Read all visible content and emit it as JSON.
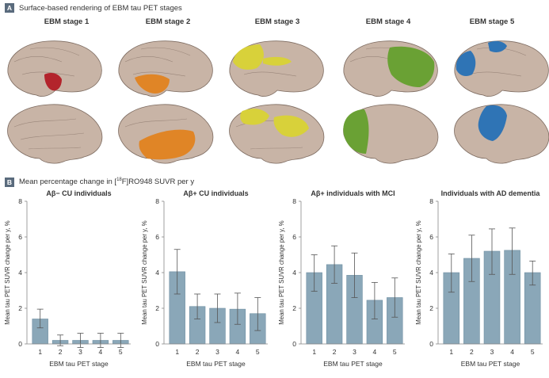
{
  "panel_a": {
    "badge": "A",
    "title": "Surface-based rendering of EBM tau PET stages",
    "stages": [
      {
        "label": "EBM stage 1",
        "color": "#b3242c"
      },
      {
        "label": "EBM stage 2",
        "color": "#e08526"
      },
      {
        "label": "EBM stage 3",
        "color": "#d8d13a"
      },
      {
        "label": "EBM stage 4",
        "color": "#6aa134"
      },
      {
        "label": "EBM stage 5",
        "color": "#2f74b5"
      }
    ]
  },
  "panel_b": {
    "badge": "B",
    "title_pre": "Mean percentage change in [",
    "title_sup": "18",
    "title_post": "F]RO948 SUVR per y"
  },
  "colors": {
    "brain": "#c8b4a6",
    "bar": "#8aa7b8",
    "bar_stroke": "#6f8fa2"
  },
  "chart_data": [
    {
      "type": "bar",
      "title": "Aβ− CU individuals",
      "xlabel": "EBM tau PET stage",
      "ylabel": "Mean tau PET SUVR change per y, %",
      "categories": [
        "1",
        "2",
        "3",
        "4",
        "5"
      ],
      "values": [
        1.4,
        0.2,
        0.2,
        0.2,
        0.2
      ],
      "err_low": [
        0.9,
        -0.1,
        -0.2,
        -0.2,
        -0.2
      ],
      "err_high": [
        1.95,
        0.5,
        0.6,
        0.6,
        0.6
      ],
      "ylim": [
        0,
        8
      ],
      "yticks": [
        "0",
        "2",
        "4",
        "6",
        "8"
      ]
    },
    {
      "type": "bar",
      "title": "Aβ+ CU individuals",
      "xlabel": "EBM tau PET stage",
      "ylabel": "Mean tau PET SUVR change per y, %",
      "categories": [
        "1",
        "2",
        "3",
        "4",
        "5"
      ],
      "values": [
        4.05,
        2.1,
        2.0,
        1.95,
        1.7
      ],
      "err_low": [
        2.8,
        1.4,
        1.2,
        1.1,
        0.75
      ],
      "err_high": [
        5.3,
        2.8,
        2.8,
        2.85,
        2.6
      ],
      "ylim": [
        0,
        8
      ],
      "yticks": [
        "0",
        "2",
        "4",
        "6",
        "8"
      ]
    },
    {
      "type": "bar",
      "title": "Aβ+ individuals with MCI",
      "xlabel": "EBM tau PET stage",
      "ylabel": "Mean tau PET SUVR change per y, %",
      "categories": [
        "1",
        "2",
        "3",
        "4",
        "5"
      ],
      "values": [
        4.0,
        4.45,
        3.85,
        2.45,
        2.6
      ],
      "err_low": [
        2.95,
        3.4,
        2.6,
        1.4,
        1.5
      ],
      "err_high": [
        5.0,
        5.5,
        5.1,
        3.45,
        3.7
      ],
      "ylim": [
        0,
        8
      ],
      "yticks": [
        "0",
        "2",
        "4",
        "6",
        "8"
      ]
    },
    {
      "type": "bar",
      "title": "Individuals with AD dementia",
      "xlabel": "EBM tau PET stage",
      "ylabel": "Mean tau PET SUVR change per y, %",
      "categories": [
        "1",
        "2",
        "3",
        "4",
        "5"
      ],
      "values": [
        4.0,
        4.8,
        5.2,
        5.25,
        4.0
      ],
      "err_low": [
        2.9,
        3.5,
        3.9,
        3.9,
        3.3
      ],
      "err_high": [
        5.05,
        6.1,
        6.45,
        6.5,
        4.65
      ],
      "ylim": [
        0,
        8
      ],
      "yticks": [
        "0",
        "2",
        "4",
        "6",
        "8"
      ]
    }
  ]
}
